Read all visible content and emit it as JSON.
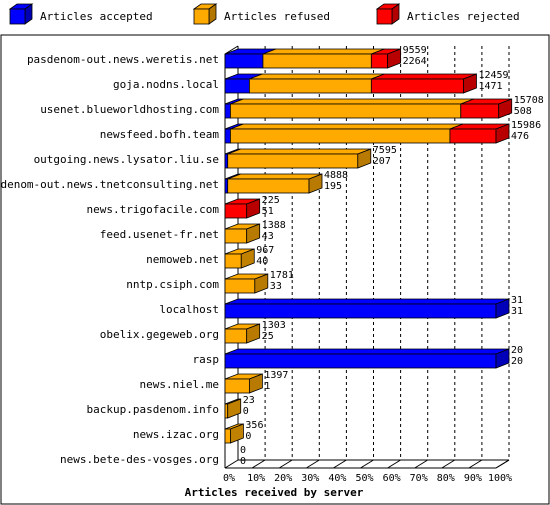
{
  "chart_data": {
    "type": "bar",
    "orientation": "horizontal",
    "stacked": true,
    "xlabel": "Articles received by server",
    "xlim": [
      0,
      100
    ],
    "x_ticks": [
      "0%",
      "10%",
      "20%",
      "30%",
      "40%",
      "50%",
      "60%",
      "70%",
      "80%",
      "90%",
      "100%"
    ],
    "legend_position": "top",
    "series": [
      {
        "name": "Articles accepted",
        "color": "#0000ff",
        "values": [
          14,
          9,
          2,
          2,
          1,
          1,
          0,
          0,
          0,
          0,
          100,
          0,
          100,
          0,
          0,
          0,
          0
        ]
      },
      {
        "name": "Articles refused",
        "color": "#ffaa00",
        "values": [
          40,
          45,
          85,
          81,
          48,
          30,
          0,
          8,
          6,
          11,
          0,
          8,
          0,
          9,
          1,
          2,
          0
        ]
      },
      {
        "name": "Articles rejected",
        "color": "#ff0000",
        "values": [
          6,
          34,
          14,
          17,
          0,
          0,
          8,
          0,
          0,
          0,
          0,
          0,
          0,
          0,
          0,
          0,
          0
        ]
      }
    ],
    "categories": [
      "pasdenom-out.news.weretis.net",
      "goja.nodns.local",
      "usenet.blueworldhosting.com",
      "newsfeed.bofh.team",
      "outgoing.news.lysator.liu.se",
      "pasdenom-out.news.tnetconsulting.net",
      "news.trigofacile.com",
      "feed.usenet-fr.net",
      "nemoweb.net",
      "nntp.csiph.com",
      "localhost",
      "obelix.gegeweb.org",
      "rasp",
      "news.niel.me",
      "backup.pasdenom.info",
      "news.izac.org",
      "news.bete-des-vosges.org"
    ],
    "labels_total": [
      "9559",
      "12459",
      "15708",
      "15986",
      "7595",
      "4888",
      "225",
      "1388",
      "967",
      "1781",
      "31",
      "1303",
      "20",
      "1397",
      "23",
      "356",
      "0"
    ],
    "labels_accepted": [
      "2264",
      "1471",
      "508",
      "476",
      "207",
      "195",
      "51",
      "43",
      "40",
      "33",
      "31",
      "25",
      "20",
      "1",
      "0",
      "0",
      "0"
    ],
    "side_color_override": [
      null,
      null,
      null,
      null,
      null,
      null,
      null,
      null,
      "#c08000",
      null,
      null,
      null,
      null,
      null,
      "#c08000",
      "#c08000",
      null
    ]
  }
}
